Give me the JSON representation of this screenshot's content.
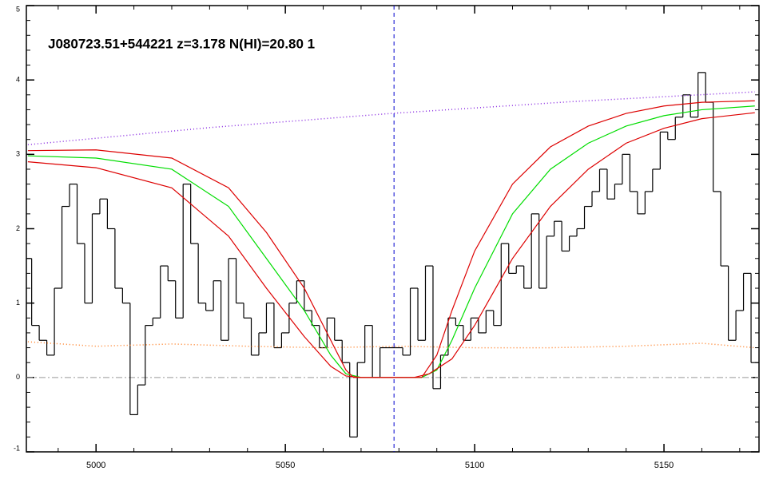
{
  "chart_data": {
    "type": "spectrum",
    "title": "J080723.51+544221 z=3.178 N(HI)=20.80 1",
    "xlim": [
      4981.6,
      5175.1
    ],
    "ylim": [
      -1,
      5
    ],
    "xticks": [
      5000,
      5050,
      5100,
      5150
    ],
    "yticks": [
      -1,
      0,
      1,
      2,
      3,
      4,
      5
    ],
    "series": [
      {
        "style": "step",
        "color": "#000000",
        "x": [
          4982,
          4984,
          4986,
          4988,
          4990,
          4992,
          4994,
          4996,
          4998,
          5000,
          5002,
          5004,
          5006,
          5008,
          5010,
          5012,
          5014,
          5016,
          5018,
          5020,
          5022,
          5024,
          5026,
          5028,
          5030,
          5032,
          5034,
          5036,
          5038,
          5040,
          5042,
          5044,
          5046,
          5048,
          5050,
          5052,
          5054,
          5056,
          5058,
          5060,
          5062,
          5064,
          5066,
          5068,
          5070,
          5072,
          5074,
          5076,
          5078,
          5080,
          5082,
          5084,
          5086,
          5088,
          5090,
          5092,
          5094,
          5096,
          5098,
          5100,
          5102,
          5104,
          5106,
          5108,
          5110,
          5112,
          5114,
          5116,
          5118,
          5120,
          5122,
          5124,
          5126,
          5128,
          5130,
          5132,
          5134,
          5136,
          5138,
          5140,
          5142,
          5144,
          5146,
          5148,
          5150,
          5152,
          5154,
          5156,
          5158,
          5160,
          5162,
          5164,
          5166,
          5168,
          5170,
          5172,
          5174
        ],
        "values": [
          1.6,
          0.7,
          0.5,
          0.3,
          1.2,
          2.3,
          2.6,
          1.8,
          1.0,
          2.2,
          2.4,
          2.0,
          1.2,
          1.0,
          -0.5,
          -0.1,
          0.7,
          0.8,
          1.5,
          1.3,
          0.8,
          2.6,
          1.8,
          1.0,
          0.9,
          1.3,
          0.5,
          1.6,
          1.0,
          0.8,
          0.3,
          0.6,
          1.0,
          0.4,
          0.6,
          1.0,
          1.3,
          0.9,
          0.7,
          0.4,
          0.8,
          0.5,
          0.2,
          -0.8,
          0.2,
          0.7,
          0.0,
          0.4,
          0.4,
          0.4,
          0.3,
          1.2,
          0.5,
          1.5,
          -0.15,
          0.3,
          0.8,
          0.7,
          0.5,
          0.8,
          0.6,
          0.9,
          0.7,
          1.8,
          1.4,
          1.5,
          1.2,
          2.2,
          1.2,
          1.9,
          2.1,
          1.7,
          1.9,
          2.0,
          2.3,
          2.5,
          2.8,
          2.4,
          2.6,
          3.0,
          2.5,
          2.2,
          2.5,
          2.8,
          3.3,
          3.2,
          3.5,
          3.8,
          3.5,
          4.1,
          3.7,
          2.5,
          1.5,
          0.5,
          0.9,
          1.4,
          0.2
        ]
      },
      {
        "style": "dotted",
        "color": "#8a2be2",
        "x": [
          4982,
          5030,
          5078,
          5126,
          5174
        ],
        "values": [
          3.13,
          3.36,
          3.55,
          3.71,
          3.84
        ]
      },
      {
        "style": "dotted",
        "color": "#ff7f24",
        "x": [
          4982,
          5000,
          5020,
          5040,
          5060,
          5080,
          5100,
          5120,
          5140,
          5160,
          5174
        ],
        "values": [
          0.48,
          0.42,
          0.45,
          0.42,
          0.4,
          0.42,
          0.4,
          0.4,
          0.42,
          0.46,
          0.4
        ]
      },
      {
        "style": "line",
        "color": "#00dd00",
        "x": [
          4982,
          5000,
          5020,
          5035,
          5045,
          5055,
          5062,
          5066,
          5070,
          5086,
          5090,
          5094,
          5100,
          5110,
          5120,
          5130,
          5140,
          5150,
          5160,
          5174
        ],
        "values": [
          2.98,
          2.95,
          2.8,
          2.3,
          1.6,
          0.9,
          0.3,
          0.05,
          0.0,
          0.0,
          0.1,
          0.5,
          1.2,
          2.2,
          2.8,
          3.15,
          3.38,
          3.52,
          3.6,
          3.65
        ]
      },
      {
        "style": "line",
        "color": "#dd0000",
        "x": [
          4982,
          5000,
          5020,
          5035,
          5045,
          5055,
          5062,
          5066,
          5068,
          5086,
          5090,
          5094,
          5100,
          5110,
          5120,
          5130,
          5140,
          5150,
          5160,
          5174
        ],
        "values": [
          3.05,
          3.06,
          2.95,
          2.55,
          1.95,
          1.2,
          0.5,
          0.1,
          0.0,
          0.0,
          0.3,
          0.9,
          1.7,
          2.6,
          3.1,
          3.38,
          3.55,
          3.65,
          3.7,
          3.72
        ]
      },
      {
        "style": "line",
        "color": "#dd0000",
        "x": [
          4982,
          5000,
          5020,
          5035,
          5045,
          5055,
          5062,
          5066,
          5070,
          5084,
          5088,
          5094,
          5100,
          5110,
          5120,
          5130,
          5140,
          5150,
          5160,
          5174
        ],
        "values": [
          2.9,
          2.82,
          2.55,
          1.9,
          1.2,
          0.55,
          0.15,
          0.02,
          0.0,
          0.0,
          0.05,
          0.25,
          0.7,
          1.6,
          2.3,
          2.8,
          3.15,
          3.35,
          3.48,
          3.56
        ]
      }
    ],
    "hlines": [
      {
        "value": 0,
        "color": "#999999",
        "style": "dashdot"
      }
    ],
    "vlines": [
      {
        "value": 5078.7,
        "color": "#0000cc",
        "style": "dashed"
      }
    ]
  }
}
